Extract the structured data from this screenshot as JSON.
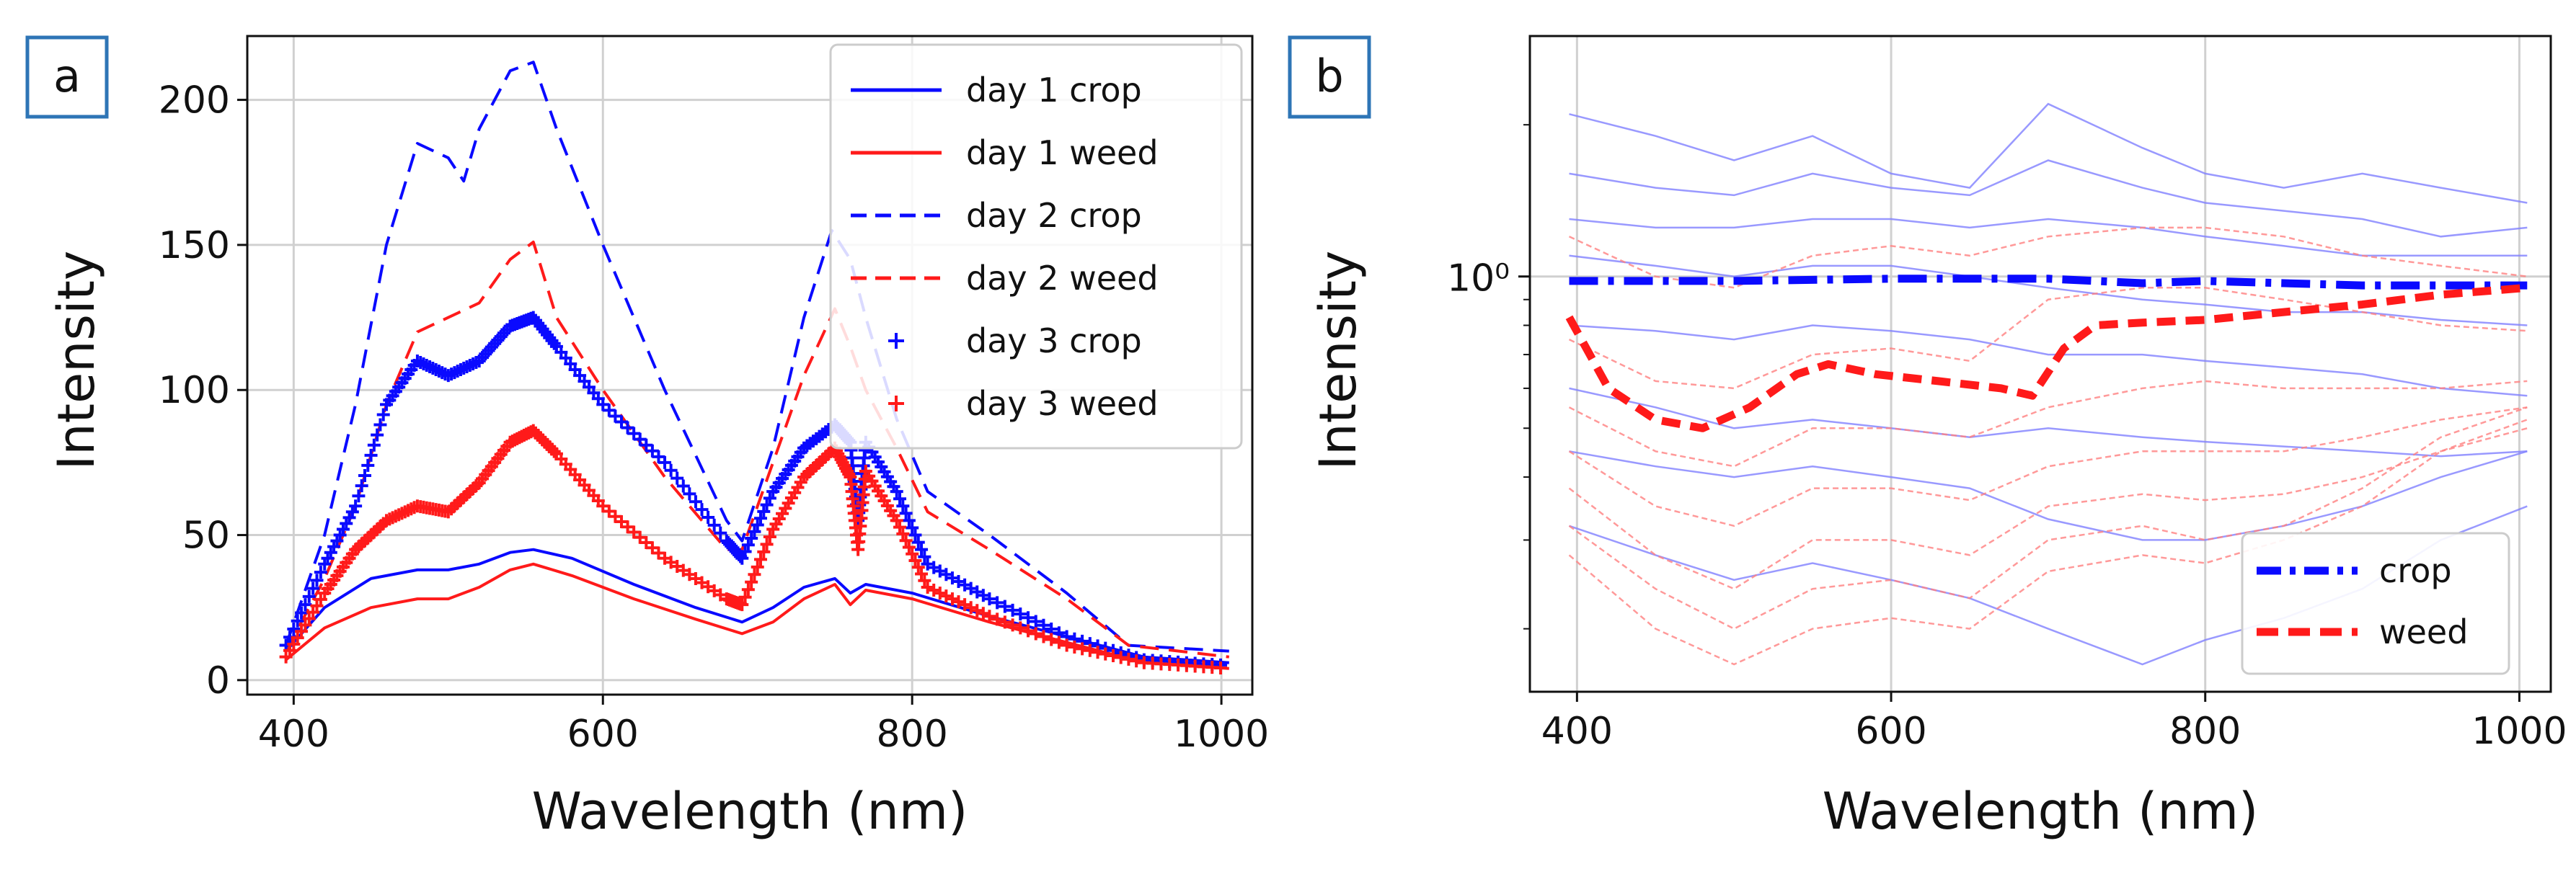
{
  "chart_data": [
    {
      "type": "line",
      "panel_label": "a",
      "xlabel": "Wavelength (nm)",
      "ylabel": "Intensity",
      "xlim": [
        370,
        1020
      ],
      "ylim": [
        -5,
        222
      ],
      "xticks": [
        400,
        600,
        800,
        1000
      ],
      "yticks": [
        0,
        50,
        100,
        150,
        200
      ],
      "grid": true,
      "legend_position": "top-right",
      "series": [
        {
          "name": "day 1 crop",
          "color": "#0a0aff",
          "style": "solid",
          "width": 4,
          "x": [
            395,
            420,
            450,
            480,
            500,
            520,
            540,
            555,
            580,
            620,
            660,
            690,
            710,
            730,
            750,
            760,
            770,
            800,
            850,
            900,
            950,
            1005
          ],
          "y": [
            10,
            25,
            35,
            38,
            38,
            40,
            44,
            45,
            42,
            33,
            25,
            20,
            25,
            32,
            35,
            30,
            33,
            30,
            22,
            15,
            8,
            6
          ]
        },
        {
          "name": "day 1 weed",
          "color": "#ff1a1a",
          "style": "solid",
          "width": 4,
          "x": [
            395,
            420,
            450,
            480,
            500,
            520,
            540,
            555,
            580,
            620,
            660,
            690,
            710,
            730,
            750,
            760,
            770,
            800,
            850,
            900,
            950,
            1005
          ],
          "y": [
            7,
            18,
            25,
            28,
            28,
            32,
            38,
            40,
            36,
            28,
            21,
            16,
            20,
            28,
            33,
            26,
            31,
            28,
            20,
            13,
            6,
            4
          ]
        },
        {
          "name": "day 2 crop",
          "color": "#0a0aff",
          "style": "dashed",
          "width": 4,
          "x": [
            395,
            420,
            440,
            460,
            480,
            500,
            510,
            520,
            540,
            555,
            570,
            600,
            640,
            680,
            690,
            710,
            730,
            748,
            760,
            770,
            790,
            810,
            850,
            900,
            940,
            1005
          ],
          "y": [
            12,
            50,
            95,
            150,
            185,
            180,
            172,
            190,
            210,
            213,
            190,
            150,
            100,
            55,
            48,
            80,
            125,
            155,
            145,
            125,
            90,
            65,
            50,
            30,
            12,
            10
          ]
        },
        {
          "name": "day 2 weed",
          "color": "#ff1a1a",
          "style": "dashed",
          "width": 4,
          "x": [
            395,
            420,
            440,
            460,
            480,
            500,
            520,
            540,
            555,
            570,
            600,
            640,
            680,
            690,
            710,
            730,
            750,
            760,
            770,
            790,
            810,
            850,
            900,
            940,
            1005
          ],
          "y": [
            10,
            35,
            60,
            95,
            120,
            125,
            130,
            145,
            151,
            125,
            100,
            70,
            45,
            45,
            75,
            105,
            128,
            115,
            100,
            80,
            58,
            45,
            28,
            12,
            8
          ]
        },
        {
          "name": "day 3 crop",
          "color": "#0a0aff",
          "style": "marker",
          "width": 4,
          "x": [
            395,
            420,
            440,
            460,
            480,
            500,
            520,
            540,
            555,
            570,
            600,
            640,
            680,
            690,
            710,
            730,
            750,
            760,
            765,
            770,
            790,
            810,
            850,
            900,
            950,
            1005
          ],
          "y": [
            12,
            40,
            60,
            95,
            110,
            105,
            110,
            122,
            125,
            115,
            95,
            75,
            48,
            42,
            65,
            80,
            88,
            82,
            55,
            82,
            65,
            40,
            28,
            15,
            7,
            5
          ]
        },
        {
          "name": "day 3 weed",
          "color": "#ff1a1a",
          "style": "marker",
          "width": 4,
          "x": [
            395,
            420,
            440,
            460,
            480,
            500,
            520,
            540,
            555,
            570,
            600,
            640,
            680,
            690,
            710,
            730,
            750,
            760,
            765,
            770,
            790,
            810,
            850,
            900,
            950,
            1005
          ],
          "y": [
            8,
            30,
            45,
            55,
            60,
            58,
            68,
            82,
            86,
            78,
            60,
            42,
            28,
            26,
            52,
            70,
            80,
            70,
            45,
            72,
            55,
            32,
            22,
            12,
            6,
            4
          ]
        }
      ]
    },
    {
      "type": "line",
      "panel_label": "b",
      "xlabel": "Wavelength (nm)",
      "ylabel": "Intensity",
      "yscale": "log",
      "xlim": [
        370,
        1020
      ],
      "ylim": [
        0.15,
        3.0
      ],
      "xticks": [
        400,
        600,
        800,
        1000
      ],
      "ytick_label": "10⁰",
      "ytick_value": 1,
      "grid": true,
      "legend_position": "bottom-right",
      "series": [
        {
          "name": "crop",
          "color": "#0a0aff",
          "style": "dashdot",
          "width": 11,
          "x": [
            395,
            500,
            600,
            700,
            760,
            800,
            900,
            1005
          ],
          "y": [
            0.98,
            0.98,
            0.99,
            0.99,
            0.97,
            0.98,
            0.96,
            0.96
          ]
        },
        {
          "name": "weed",
          "color": "#ff1a1a",
          "style": "dashed",
          "width": 11,
          "x": [
            395,
            420,
            450,
            480,
            510,
            540,
            560,
            590,
            630,
            670,
            690,
            710,
            730,
            760,
            800,
            850,
            900,
            950,
            1005
          ],
          "y": [
            0.83,
            0.6,
            0.52,
            0.5,
            0.55,
            0.64,
            0.67,
            0.64,
            0.62,
            0.6,
            0.58,
            0.72,
            0.8,
            0.81,
            0.82,
            0.85,
            0.88,
            0.92,
            0.95
          ]
        }
      ],
      "background_samples": {
        "crop_color": "#7f7fff",
        "weed_color": "#ff7f7f",
        "x": [
          395,
          450,
          500,
          550,
          600,
          650,
          700,
          760,
          800,
          850,
          900,
          950,
          1005
        ],
        "crop": [
          [
            2.1,
            1.9,
            1.7,
            1.9,
            1.6,
            1.5,
            2.2,
            1.8,
            1.6,
            1.5,
            1.6,
            1.5,
            1.4
          ],
          [
            1.6,
            1.5,
            1.45,
            1.6,
            1.5,
            1.45,
            1.7,
            1.5,
            1.4,
            1.35,
            1.3,
            1.2,
            1.25
          ],
          [
            1.3,
            1.25,
            1.25,
            1.3,
            1.3,
            1.25,
            1.3,
            1.25,
            1.2,
            1.15,
            1.1,
            1.1,
            1.1
          ],
          [
            1.1,
            1.05,
            1.0,
            1.05,
            1.05,
            1.0,
            0.95,
            0.9,
            0.88,
            0.85,
            0.85,
            0.82,
            0.8
          ],
          [
            0.8,
            0.78,
            0.75,
            0.8,
            0.78,
            0.75,
            0.7,
            0.7,
            0.68,
            0.66,
            0.64,
            0.6,
            0.58
          ],
          [
            0.6,
            0.55,
            0.5,
            0.52,
            0.5,
            0.48,
            0.5,
            0.48,
            0.47,
            0.46,
            0.45,
            0.44,
            0.45
          ],
          [
            0.45,
            0.42,
            0.4,
            0.42,
            0.4,
            0.38,
            0.33,
            0.3,
            0.3,
            0.32,
            0.35,
            0.4,
            0.45
          ],
          [
            0.32,
            0.28,
            0.25,
            0.27,
            0.25,
            0.23,
            0.2,
            0.17,
            0.19,
            0.21,
            0.24,
            0.3,
            0.35
          ]
        ],
        "weed": [
          [
            1.2,
            1.0,
            0.95,
            1.1,
            1.15,
            1.1,
            1.2,
            1.25,
            1.25,
            1.2,
            1.1,
            1.05,
            1.0
          ],
          [
            0.75,
            0.62,
            0.6,
            0.7,
            0.72,
            0.68,
            0.9,
            0.95,
            0.95,
            0.9,
            0.85,
            0.8,
            0.78
          ],
          [
            0.55,
            0.45,
            0.42,
            0.5,
            0.5,
            0.48,
            0.55,
            0.6,
            0.62,
            0.6,
            0.6,
            0.6,
            0.62
          ],
          [
            0.45,
            0.35,
            0.32,
            0.38,
            0.38,
            0.36,
            0.42,
            0.45,
            0.45,
            0.45,
            0.48,
            0.52,
            0.55
          ],
          [
            0.38,
            0.28,
            0.24,
            0.3,
            0.3,
            0.28,
            0.35,
            0.37,
            0.36,
            0.37,
            0.4,
            0.45,
            0.5
          ],
          [
            0.32,
            0.24,
            0.2,
            0.24,
            0.25,
            0.23,
            0.3,
            0.32,
            0.3,
            0.32,
            0.38,
            0.48,
            0.55
          ],
          [
            0.28,
            0.2,
            0.17,
            0.2,
            0.21,
            0.2,
            0.26,
            0.28,
            0.27,
            0.3,
            0.35,
            0.45,
            0.52
          ]
        ]
      }
    }
  ]
}
